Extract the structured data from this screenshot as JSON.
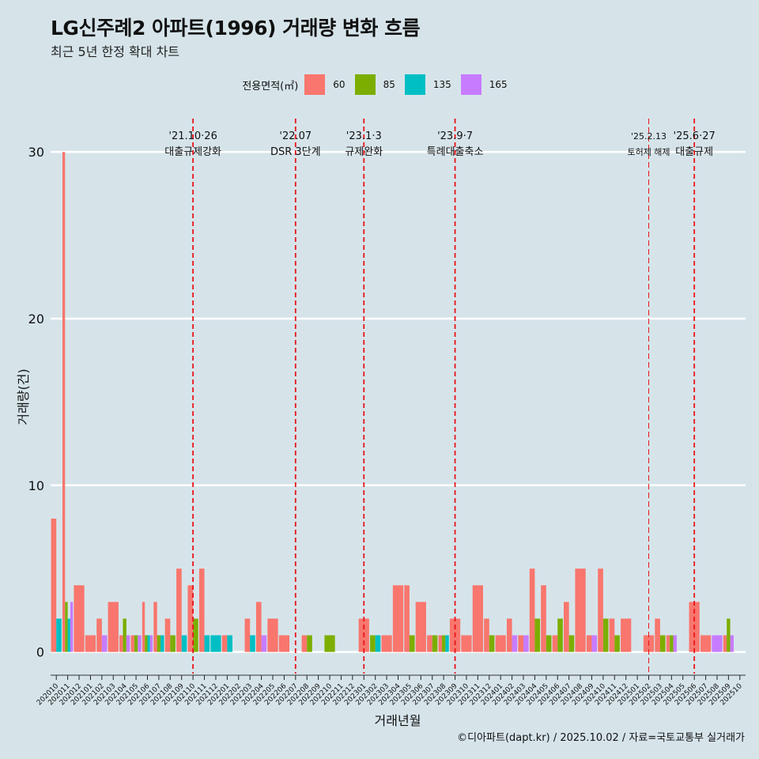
{
  "title": "LG신주례2 아파트(1996) 거래량 변화 흐름",
  "subtitle": "최근 5년 한정 확대 차트",
  "caption": "©디아파트(dapt.kr) / 2025.10.02 / 자료=국토교통부 실거래가",
  "chart_data": {
    "type": "bar",
    "title": "LG신주례2 아파트(1996) 거래량 변화 흐름",
    "subtitle": "최근 5년 한정 확대 차트",
    "xlabel": "거래년월",
    "ylabel": "거래량(건)",
    "ylim": [
      -1.3,
      32
    ],
    "yticks": [
      0,
      10,
      20,
      30
    ],
    "grid": "horizontal",
    "legend_position": "top",
    "legend": {
      "title": "전용면적(㎡)",
      "entries": [
        "60",
        "85",
        "135",
        "165"
      ],
      "colors": {
        "60": "#f8766d",
        "85": "#7cae00",
        "135": "#00bfc4",
        "165": "#c77cff"
      }
    },
    "categories": [
      "202010",
      "202011",
      "202012",
      "202101",
      "202102",
      "202103",
      "202104",
      "202105",
      "202106",
      "202107",
      "202108",
      "202109",
      "202110",
      "202111",
      "202112",
      "202201",
      "202202",
      "202203",
      "202204",
      "202205",
      "202206",
      "202207",
      "202208",
      "202209",
      "202210",
      "202211",
      "202212",
      "202301",
      "202302",
      "202303",
      "202304",
      "202305",
      "202306",
      "202307",
      "202308",
      "202309",
      "202310",
      "202311",
      "202312",
      "202401",
      "202402",
      "202403",
      "202404",
      "202405",
      "202406",
      "202407",
      "202408",
      "202409",
      "202410",
      "202411",
      "202412",
      "202501",
      "202502",
      "202503",
      "202504",
      "202505",
      "202506",
      "202507",
      "202508",
      "202509",
      "202510"
    ],
    "series": [
      {
        "name": "60",
        "values": [
          8,
          30,
          4,
          1,
          2,
          3,
          1,
          1,
          3,
          3,
          2,
          5,
          4,
          5,
          0,
          1,
          0,
          2,
          3,
          2,
          1,
          0,
          1,
          0,
          0,
          0,
          0,
          2,
          0,
          1,
          4,
          4,
          3,
          1,
          1,
          2,
          1,
          4,
          2,
          1,
          2,
          1,
          5,
          4,
          1,
          3,
          5,
          1,
          5,
          2,
          2,
          0,
          1,
          2,
          1,
          0,
          3,
          1,
          0,
          1,
          0
        ]
      },
      {
        "name": "85",
        "values": [
          0,
          3,
          0,
          0,
          0,
          0,
          2,
          1,
          1,
          1,
          1,
          0,
          2,
          0,
          0,
          0,
          0,
          0,
          0,
          0,
          0,
          0,
          1,
          0,
          1,
          0,
          0,
          0,
          1,
          0,
          0,
          1,
          0,
          1,
          1,
          0,
          0,
          0,
          1,
          0,
          0,
          0,
          2,
          1,
          2,
          1,
          0,
          0,
          2,
          1,
          0,
          0,
          0,
          1,
          1,
          0,
          0,
          0,
          0,
          2,
          0
        ]
      },
      {
        "name": "135",
        "values": [
          2,
          2,
          0,
          0,
          0,
          0,
          0,
          0,
          1,
          1,
          0,
          1,
          0,
          1,
          1,
          1,
          0,
          1,
          0,
          0,
          0,
          0,
          0,
          0,
          0,
          0,
          0,
          0,
          1,
          0,
          0,
          0,
          0,
          0,
          1,
          0,
          0,
          0,
          0,
          0,
          0,
          0,
          0,
          0,
          0,
          0,
          0,
          0,
          0,
          0,
          0,
          0,
          0,
          0,
          0,
          0,
          0,
          0,
          0,
          0,
          0
        ]
      },
      {
        "name": "165",
        "values": [
          0,
          3,
          0,
          0,
          1,
          0,
          1,
          1,
          1,
          0,
          0,
          0,
          0,
          0,
          0,
          0,
          0,
          0,
          1,
          0,
          0,
          0,
          0,
          0,
          0,
          0,
          0,
          0,
          0,
          0,
          0,
          0,
          0,
          0,
          0,
          0,
          0,
          0,
          0,
          0,
          1,
          1,
          0,
          0,
          0,
          0,
          0,
          1,
          0,
          0,
          0,
          0,
          0,
          0,
          1,
          0,
          0,
          0,
          1,
          1,
          0
        ]
      }
    ],
    "annotations": [
      {
        "category": "202110",
        "date": "'21.10·26",
        "label": "대출규제강화",
        "style": "dashed"
      },
      {
        "category": "202207",
        "date": "'22.07",
        "label": "DSR 3단계",
        "style": "dashed"
      },
      {
        "category": "202301",
        "date": "'23.1·3",
        "label": "규제완화",
        "style": "dashed"
      },
      {
        "category": "202309",
        "date": "'23.9·7",
        "label": "특례대출축소",
        "style": "dashed"
      },
      {
        "category": "202502",
        "date": "'25.2.13",
        "label": "토허제 해제",
        "style": "thin",
        "small": true
      },
      {
        "category": "202506",
        "date": "'25.6·27",
        "label": "대출규제",
        "style": "dashed"
      }
    ]
  }
}
